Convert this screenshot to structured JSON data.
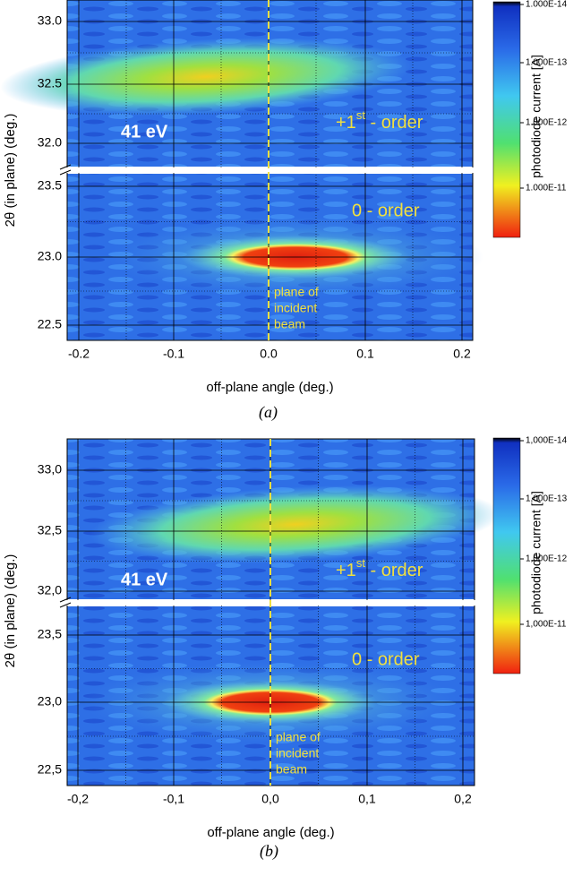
{
  "panels": [
    {
      "caption": "(a)",
      "x_label": "off-plane angle (deg.)",
      "y_label": "2θ (in plane) (deg.)",
      "xtick_labels": [
        "-0.2",
        "-0.1",
        "0.0",
        "0.1",
        "0.2"
      ],
      "ytick_labels_upper": [
        "33.0",
        "32.5",
        "32.0"
      ],
      "ytick_labels_lower": [
        "23.5",
        "23.0",
        "22.5"
      ],
      "colorbar_title": "photodiode current [A]",
      "colorbar_labels": [
        "1.000E-14",
        "1.000E-13",
        "1.000E-12",
        "1.000E-11"
      ],
      "energy": "41 eV",
      "order_1": [
        "+1",
        "st",
        " - order"
      ],
      "order_0": "0 - order",
      "beam_label": [
        "plane of",
        "incident",
        "beam"
      ]
    },
    {
      "caption": "(b)",
      "x_label": "off-plane angle (deg.)",
      "y_label": "2θ (in plane) (deg.)",
      "xtick_labels": [
        "-0,2",
        "-0,1",
        "0,0",
        "0,1",
        "0,2"
      ],
      "ytick_labels_upper": [
        "33,0",
        "32,5",
        "32,0"
      ],
      "ytick_labels_lower": [
        "23,5",
        "23,0",
        "22,5"
      ],
      "colorbar_title": "photodiode current [A]",
      "colorbar_labels": [
        "1,000E-14",
        "1,000E-13",
        "1,000E-12",
        "1,000E-11"
      ],
      "energy": "41 eV",
      "order_1": [
        "+1",
        "st",
        " - order"
      ],
      "order_0": "0 - order",
      "beam_label": [
        "plane of",
        "incident",
        "beam"
      ]
    }
  ]
}
